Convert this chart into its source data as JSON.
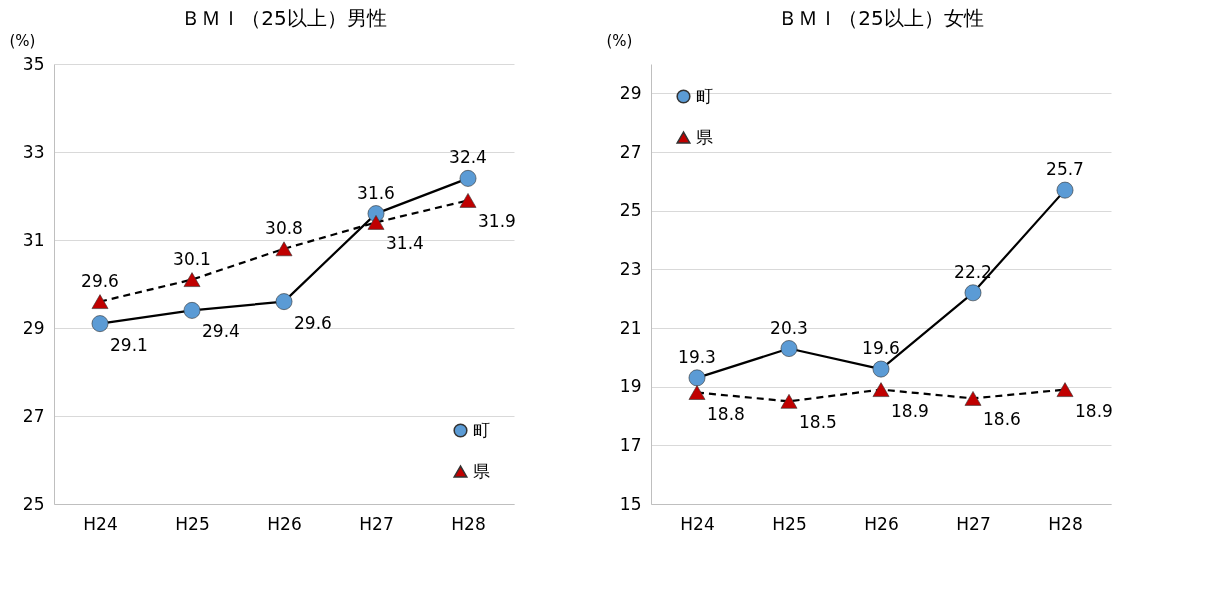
{
  "chart_data": [
    {
      "type": "line",
      "title": "ＢＭＩ（25以上）男性",
      "ylabel": "(%)",
      "categories": [
        "H24",
        "H25",
        "H26",
        "H27",
        "H28"
      ],
      "ylim": [
        25,
        35
      ],
      "yticks": [
        25,
        27,
        29,
        31,
        33,
        35
      ],
      "grid": "y",
      "legend": "bottom right",
      "data_labels": true,
      "series": [
        {
          "name": "町",
          "color": "#5b9bd5",
          "marker": "circle",
          "line_style": "solid",
          "values": [
            29.1,
            29.4,
            29.6,
            31.6,
            32.4
          ]
        },
        {
          "name": "県",
          "color": "#c00000",
          "marker": "triangle",
          "line_style": "dashed",
          "values": [
            29.6,
            30.1,
            30.8,
            31.4,
            31.9
          ]
        }
      ]
    },
    {
      "type": "line",
      "title": "ＢＭＩ（25以上）女性",
      "ylabel": "(%)",
      "categories": [
        "H24",
        "H25",
        "H26",
        "H27",
        "H28"
      ],
      "ylim": [
        15,
        30
      ],
      "yticks": [
        15,
        17,
        19,
        21,
        23,
        25,
        27,
        29
      ],
      "grid": "y",
      "legend": "top left",
      "data_labels": true,
      "series": [
        {
          "name": "町",
          "color": "#5b9bd5",
          "marker": "circle",
          "line_style": "solid",
          "values": [
            19.3,
            20.3,
            19.6,
            22.2,
            25.7
          ]
        },
        {
          "name": "県",
          "color": "#c00000",
          "marker": "triangle",
          "line_style": "dashed",
          "values": [
            18.8,
            18.5,
            18.9,
            18.6,
            18.9
          ]
        }
      ]
    }
  ]
}
